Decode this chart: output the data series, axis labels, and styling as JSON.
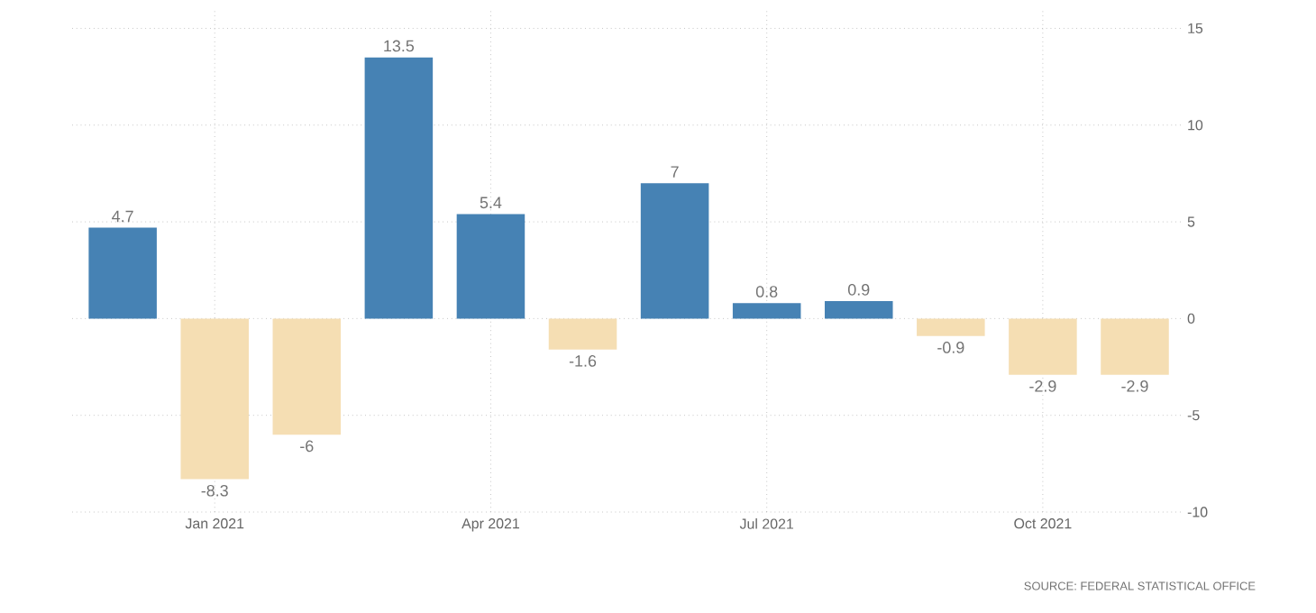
{
  "chart_data": {
    "type": "bar",
    "categories": [
      null,
      "Jan 2021",
      null,
      null,
      "Apr 2021",
      null,
      null,
      "Jul 2021",
      null,
      null,
      "Oct 2021",
      null
    ],
    "values": [
      4.7,
      -8.3,
      -6,
      13.5,
      5.4,
      -1.6,
      7,
      0.8,
      0.9,
      -0.9,
      -2.9,
      -2.9
    ],
    "colors": [
      "#4682b4",
      "#f5deb3",
      "#f5deb3",
      "#4682b4",
      "#4682b4",
      "#f5deb3",
      "#4682b4",
      "#4682b4",
      "#4682b4",
      "#f5deb3",
      "#f5deb3",
      "#f5deb3"
    ],
    "ylim": [
      -10,
      16
    ],
    "yticks": [
      -10,
      -5,
      0,
      5,
      10,
      15
    ],
    "grid": true,
    "data_labels": true,
    "annotations": [
      "SOURCE: FEDERAL STATISTICAL OFFICE"
    ]
  }
}
